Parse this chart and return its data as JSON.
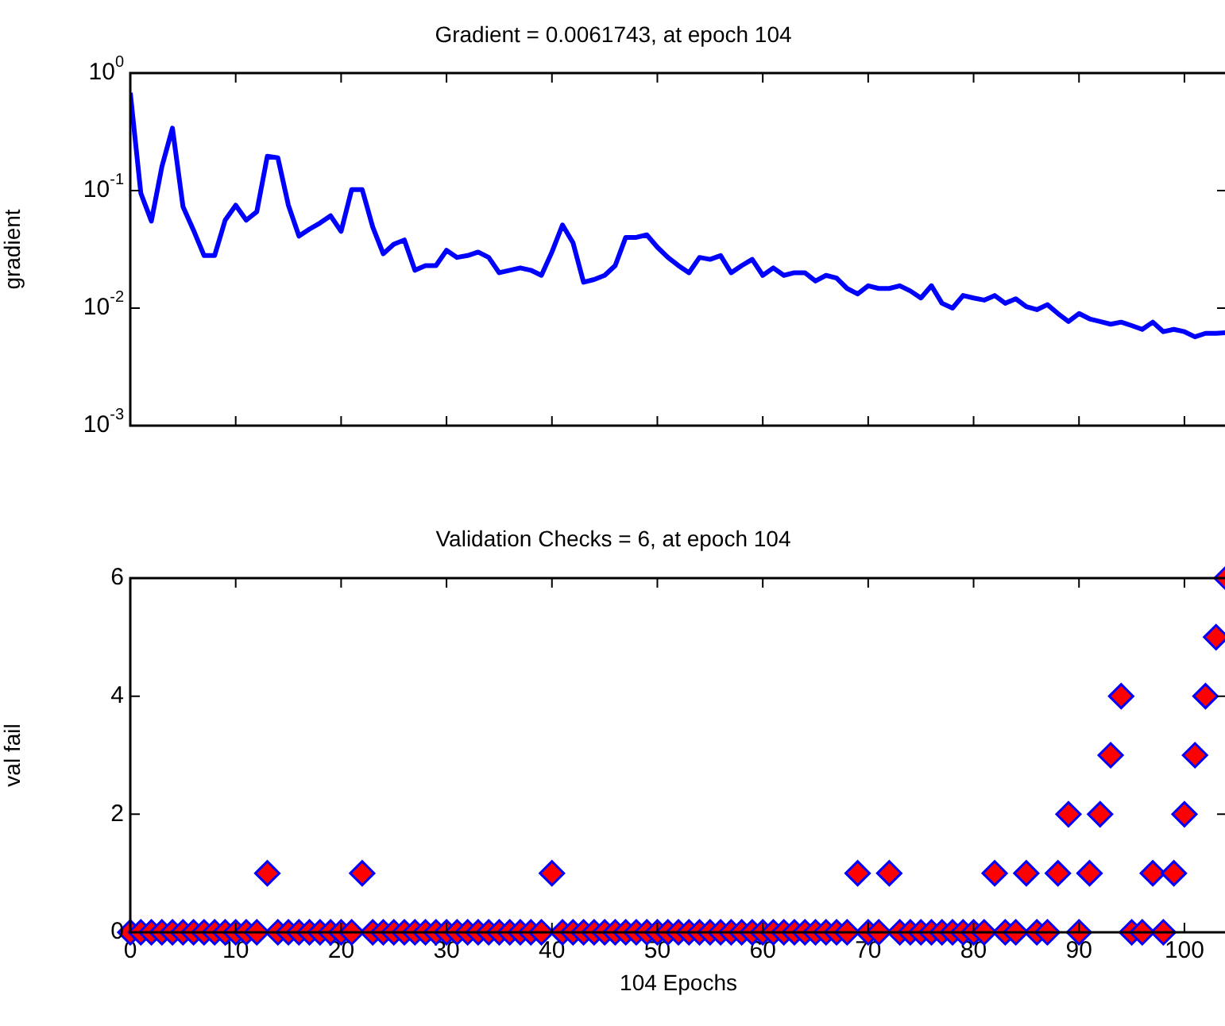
{
  "chart_data": [
    {
      "type": "line",
      "title": "Gradient = 0.0061743, at epoch 104",
      "ylabel": "gradient",
      "x": [
        0,
        1,
        2,
        3,
        4,
        5,
        6,
        7,
        8,
        9,
        10,
        11,
        12,
        13,
        14,
        15,
        16,
        17,
        18,
        19,
        20,
        21,
        22,
        23,
        24,
        25,
        26,
        27,
        28,
        29,
        30,
        31,
        32,
        33,
        34,
        35,
        36,
        37,
        38,
        39,
        40,
        41,
        42,
        43,
        44,
        45,
        46,
        47,
        48,
        49,
        50,
        51,
        52,
        53,
        54,
        55,
        56,
        57,
        58,
        59,
        60,
        61,
        62,
        63,
        64,
        65,
        66,
        67,
        68,
        69,
        70,
        71,
        72,
        73,
        74,
        75,
        76,
        77,
        78,
        79,
        80,
        81,
        82,
        83,
        84,
        85,
        86,
        87,
        88,
        89,
        90,
        91,
        92,
        93,
        94,
        95,
        96,
        97,
        98,
        99,
        100,
        101,
        102,
        103,
        104
      ],
      "series": [
        {
          "color": "#0000ff",
          "values": [
            0.68,
            0.095,
            0.055,
            0.16,
            0.34,
            0.073,
            0.046,
            0.028,
            0.028,
            0.056,
            0.075,
            0.056,
            0.066,
            0.196,
            0.19,
            0.075,
            0.041,
            0.047,
            0.053,
            0.061,
            0.045,
            0.102,
            0.102,
            0.049,
            0.029,
            0.035,
            0.038,
            0.021,
            0.023,
            0.023,
            0.031,
            0.027,
            0.028,
            0.03,
            0.027,
            0.02,
            0.021,
            0.022,
            0.021,
            0.019,
            0.03,
            0.051,
            0.036,
            0.0166,
            0.0175,
            0.019,
            0.023,
            0.04,
            0.04,
            0.042,
            0.033,
            0.027,
            0.023,
            0.02,
            0.027,
            0.026,
            0.028,
            0.02,
            0.023,
            0.026,
            0.019,
            0.022,
            0.019,
            0.02,
            0.02,
            0.017,
            0.019,
            0.018,
            0.0147,
            0.0132,
            0.0155,
            0.0147,
            0.0147,
            0.0155,
            0.014,
            0.0122,
            0.0155,
            0.011,
            0.01,
            0.0128,
            0.0122,
            0.0117,
            0.0128,
            0.011,
            0.012,
            0.0103,
            0.0097,
            0.0107,
            0.009,
            0.0077,
            0.009,
            0.0081,
            0.0077,
            0.0073,
            0.0076,
            0.0071,
            0.0066,
            0.0076,
            0.0063,
            0.0066,
            0.0063,
            0.0057,
            0.0061,
            0.0061,
            0.0061743
          ]
        }
      ],
      "xlim": [
        0,
        104
      ],
      "xticks": [
        0,
        10,
        20,
        30,
        40,
        50,
        60,
        70,
        80,
        90,
        100
      ],
      "ylim": [
        0.001,
        1
      ],
      "yticks": [
        {
          "value": 0.001,
          "label": "10$^{-3}$"
        },
        {
          "value": 0.01,
          "label": "10$^{-2}$"
        },
        {
          "value": 0.1,
          "label": "10$^{-1}$"
        },
        {
          "value": 1,
          "label": "10$^{0}$"
        }
      ],
      "log": "y",
      "grid": false,
      "legend": false,
      "tick_labels": "y",
      "marker": "none",
      "line_style": "solid"
    },
    {
      "type": "scatter",
      "title": "Validation Checks = 6, at epoch 104",
      "xlabel": "104 Epochs",
      "ylabel": "val fail",
      "x": [
        0,
        1,
        2,
        3,
        4,
        5,
        6,
        7,
        8,
        9,
        10,
        11,
        12,
        13,
        14,
        15,
        16,
        17,
        18,
        19,
        20,
        21,
        22,
        23,
        24,
        25,
        26,
        27,
        28,
        29,
        30,
        31,
        32,
        33,
        34,
        35,
        36,
        37,
        38,
        39,
        40,
        41,
        42,
        43,
        44,
        45,
        46,
        47,
        48,
        49,
        50,
        51,
        52,
        53,
        54,
        55,
        56,
        57,
        58,
        59,
        60,
        61,
        62,
        63,
        64,
        65,
        66,
        67,
        68,
        69,
        70,
        71,
        72,
        73,
        74,
        75,
        76,
        77,
        78,
        79,
        80,
        81,
        82,
        83,
        84,
        85,
        86,
        87,
        88,
        89,
        90,
        91,
        92,
        93,
        94,
        95,
        96,
        97,
        98,
        99,
        100,
        101,
        102,
        103,
        104
      ],
      "series": [
        {
          "color": "#ff0000",
          "values": [
            0,
            0,
            0,
            0,
            0,
            0,
            0,
            0,
            0,
            0,
            0,
            0,
            0,
            1,
            0,
            0,
            0,
            0,
            0,
            0,
            0,
            0,
            1,
            0,
            0,
            0,
            0,
            0,
            0,
            0,
            0,
            0,
            0,
            0,
            0,
            0,
            0,
            0,
            0,
            0,
            1,
            0,
            0,
            0,
            0,
            0,
            0,
            0,
            0,
            0,
            0,
            0,
            0,
            0,
            0,
            0,
            0,
            0,
            0,
            0,
            0,
            0,
            0,
            0,
            0,
            0,
            0,
            0,
            0,
            1,
            0,
            0,
            1,
            0,
            0,
            0,
            0,
            0,
            0,
            0,
            0,
            0,
            1,
            0,
            0,
            1,
            0,
            0,
            1,
            2,
            0,
            1,
            2,
            3,
            4,
            0,
            0,
            1,
            0,
            1,
            2,
            3,
            4,
            5,
            6
          ]
        }
      ],
      "xlim": [
        0,
        104
      ],
      "xticks": [
        0,
        10,
        20,
        30,
        40,
        50,
        60,
        70,
        80,
        90,
        100
      ],
      "ylim": [
        0,
        6
      ],
      "yticks": [
        0,
        2,
        4,
        6
      ],
      "grid": false,
      "legend": false,
      "marker": "diamond"
    }
  ]
}
